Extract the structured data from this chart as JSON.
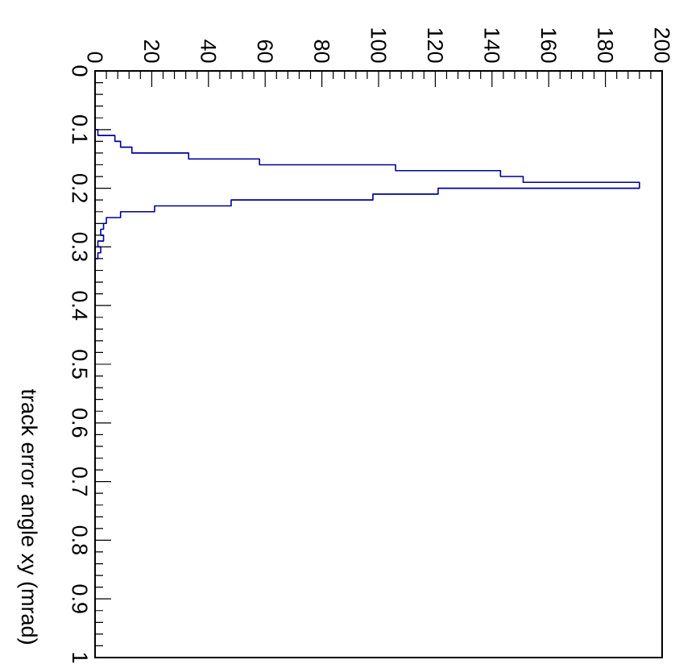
{
  "chart_data": {
    "type": "histogram",
    "orientation": "horizontal",
    "ylabel": "track error angle xy (mrad)",
    "bins": [
      0.1,
      0.11,
      0.12,
      0.13,
      0.14,
      0.15,
      0.16,
      0.17,
      0.18,
      0.19,
      0.2,
      0.21,
      0.22,
      0.23,
      0.24,
      0.25,
      0.26,
      0.27,
      0.28,
      0.29,
      0.3,
      0.31,
      0.32
    ],
    "values": [
      1,
      7,
      9,
      13,
      33,
      58,
      106,
      143,
      151,
      192,
      121,
      98,
      48,
      21,
      9,
      4,
      3,
      2,
      3,
      1,
      2,
      1
    ],
    "color": "#000099",
    "xlim": [
      0,
      200
    ],
    "ylim": [
      1,
      0
    ],
    "xticks": [
      0,
      20,
      40,
      60,
      80,
      100,
      120,
      140,
      160,
      180,
      200
    ],
    "yticks": [
      0,
      0.1,
      0.2,
      0.3,
      0.4,
      0.5,
      0.6,
      0.7,
      0.8,
      0.9,
      1
    ]
  }
}
